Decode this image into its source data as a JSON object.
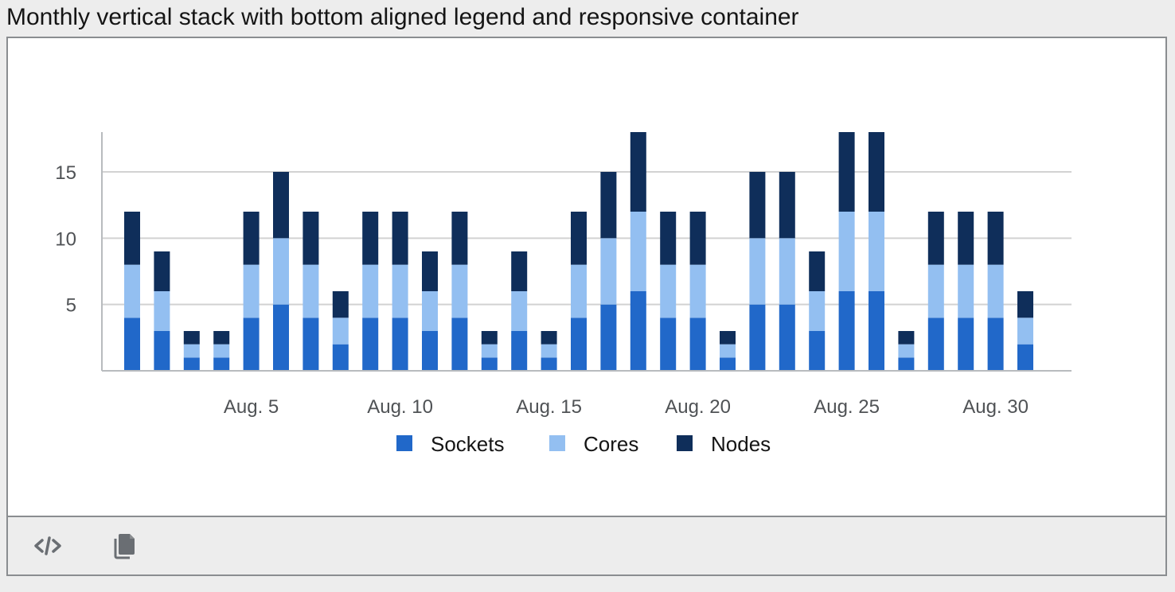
{
  "page": {
    "title": "Monthly vertical stack with bottom aligned legend and responsive container"
  },
  "toolbar": {
    "code_icon": "code-icon",
    "copy_icon": "copy-icon"
  },
  "colors": {
    "sockets": "#2168c9",
    "cores": "#93bff1",
    "nodes": "#0f2e5a",
    "grid": "#d2d2d2",
    "axis": "#b8bbbe"
  },
  "chart_data": {
    "type": "bar",
    "stacked": true,
    "title": "",
    "xlabel": "",
    "ylabel": "",
    "ylim": [
      0,
      18
    ],
    "yticks": [
      5,
      10,
      15
    ],
    "categories": [
      "Aug. 1",
      "Aug. 2",
      "Aug. 3",
      "Aug. 4",
      "Aug. 5",
      "Aug. 6",
      "Aug. 7",
      "Aug. 8",
      "Aug. 9",
      "Aug. 10",
      "Aug. 11",
      "Aug. 12",
      "Aug. 13",
      "Aug. 14",
      "Aug. 15",
      "Aug. 16",
      "Aug. 17",
      "Aug. 18",
      "Aug. 19",
      "Aug. 20",
      "Aug. 21",
      "Aug. 22",
      "Aug. 23",
      "Aug. 24",
      "Aug. 25",
      "Aug. 26",
      "Aug. 27",
      "Aug. 28",
      "Aug. 29",
      "Aug. 30",
      "Aug. 31"
    ],
    "xtick_labels": [
      "Aug. 5",
      "Aug. 10",
      "Aug. 15",
      "Aug. 20",
      "Aug. 25",
      "Aug. 30"
    ],
    "legend_position": "bottom",
    "grid": true,
    "series": [
      {
        "name": "Sockets",
        "values": [
          4,
          3,
          1,
          1,
          4,
          5,
          4,
          2,
          4,
          4,
          3,
          4,
          1,
          3,
          1,
          4,
          5,
          6,
          4,
          4,
          1,
          5,
          5,
          3,
          6,
          6,
          1,
          4,
          4,
          4,
          2
        ]
      },
      {
        "name": "Cores",
        "values": [
          4,
          3,
          1,
          1,
          4,
          5,
          4,
          2,
          4,
          4,
          3,
          4,
          1,
          3,
          1,
          4,
          5,
          6,
          4,
          4,
          1,
          5,
          5,
          3,
          6,
          6,
          1,
          4,
          4,
          4,
          2
        ]
      },
      {
        "name": "Nodes",
        "values": [
          4,
          3,
          1,
          1,
          4,
          5,
          4,
          2,
          4,
          4,
          3,
          4,
          1,
          3,
          1,
          4,
          5,
          6,
          4,
          4,
          1,
          5,
          5,
          3,
          6,
          6,
          1,
          4,
          4,
          4,
          2
        ]
      }
    ]
  }
}
